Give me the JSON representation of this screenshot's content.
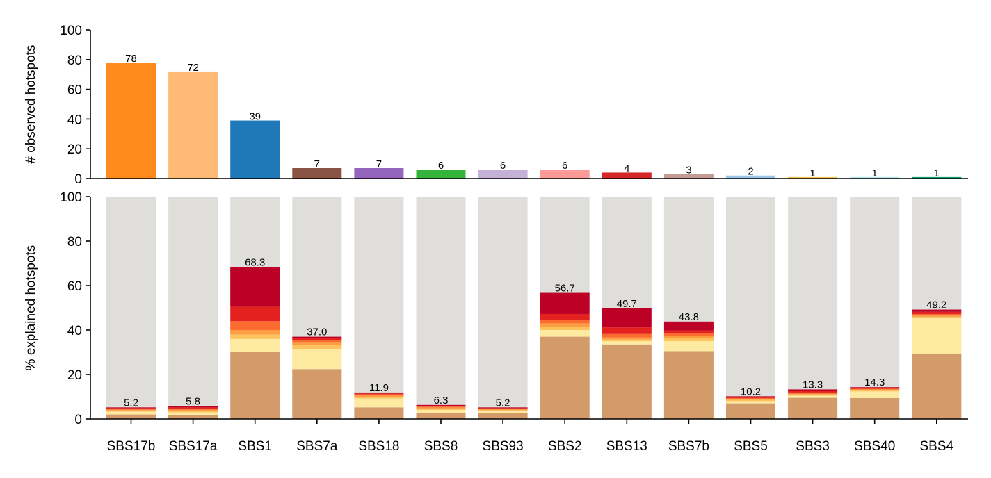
{
  "chart_data": [
    {
      "type": "bar",
      "ylabel": "# observed hotspots",
      "ylim": [
        0,
        100
      ],
      "yticks": [
        0,
        20,
        40,
        60,
        80,
        100
      ],
      "categories": [
        "SBS17b",
        "SBS17a",
        "SBS1",
        "SBS7a",
        "SBS18",
        "SBS8",
        "SBS93",
        "SBS2",
        "SBS13",
        "SBS7b",
        "SBS5",
        "SBS3",
        "SBS40",
        "SBS4"
      ],
      "values": [
        78,
        72,
        39,
        7,
        7,
        6,
        6,
        6,
        4,
        3,
        2,
        1,
        1,
        1
      ],
      "data_labels": [
        "78",
        "72",
        "39",
        "7",
        "7",
        "6",
        "6",
        "6",
        "4",
        "3",
        "2",
        "1",
        "1",
        "1"
      ],
      "colors": [
        "#ff8a1e",
        "#ffba78",
        "#1f78b8",
        "#8a5445",
        "#9565bd",
        "#34b43a",
        "#c5b0d6",
        "#fc9a98",
        "#d52726",
        "#c49c94",
        "#9ac6e6",
        "#f6c24a",
        "#aee4ee",
        "#1a9e77"
      ]
    },
    {
      "type": "bar",
      "stacked": true,
      "ylabel": "% explained hotspots",
      "ylim": [
        0,
        100
      ],
      "yticks": [
        0,
        20,
        40,
        60,
        80,
        100
      ],
      "categories": [
        "SBS17b",
        "SBS17a",
        "SBS1",
        "SBS7a",
        "SBS18",
        "SBS8",
        "SBS93",
        "SBS2",
        "SBS13",
        "SBS7b",
        "SBS5",
        "SBS3",
        "SBS40",
        "SBS4"
      ],
      "background_value": 100,
      "background_color": "#dfdedb",
      "segment_colors": [
        "#d49b6a",
        "#fde9a0",
        "#fec35f",
        "#fd9d42",
        "#fb6a2e",
        "#e3211f",
        "#bd0026"
      ],
      "segments": [
        [
          2.0,
          1.3,
          0.5,
          0.4,
          0.4,
          0.3,
          0.3
        ],
        [
          1.7,
          1.3,
          0.7,
          0.5,
          0.5,
          0.5,
          0.6
        ],
        [
          30.0,
          6.0,
          2.0,
          2.0,
          4.0,
          6.5,
          17.8
        ],
        [
          22.4,
          9.0,
          2.0,
          1.2,
          1.0,
          0.7,
          0.7
        ],
        [
          5.2,
          4.0,
          0.8,
          0.6,
          0.5,
          0.4,
          0.4
        ],
        [
          2.6,
          1.5,
          0.6,
          0.5,
          0.4,
          0.3,
          0.4
        ],
        [
          2.5,
          1.0,
          0.5,
          0.4,
          0.3,
          0.2,
          0.3
        ],
        [
          37.0,
          3.0,
          1.5,
          1.5,
          1.5,
          2.7,
          9.5
        ],
        [
          33.5,
          1.5,
          0.8,
          0.9,
          1.5,
          3.0,
          8.5
        ],
        [
          30.5,
          4.5,
          1.5,
          1.0,
          1.0,
          1.3,
          4.0
        ],
        [
          7.0,
          1.0,
          0.6,
          0.4,
          0.4,
          0.4,
          0.4
        ],
        [
          9.5,
          1.0,
          0.5,
          0.4,
          0.5,
          0.6,
          0.8
        ],
        [
          9.4,
          3.0,
          0.6,
          0.3,
          0.3,
          0.3,
          0.4
        ],
        [
          29.4,
          16.0,
          0.6,
          0.5,
          0.7,
          1.0,
          1.0
        ]
      ],
      "totals": [
        5.2,
        5.8,
        68.3,
        37.0,
        11.9,
        6.3,
        5.2,
        56.7,
        49.7,
        43.8,
        10.2,
        13.3,
        14.3,
        49.2
      ],
      "data_labels": [
        "5.2",
        "5.8",
        "68.3",
        "37.0",
        "11.9",
        "6.3",
        "5.2",
        "56.7",
        "49.7",
        "43.8",
        "10.2",
        "13.3",
        "14.3",
        "49.2"
      ]
    }
  ]
}
